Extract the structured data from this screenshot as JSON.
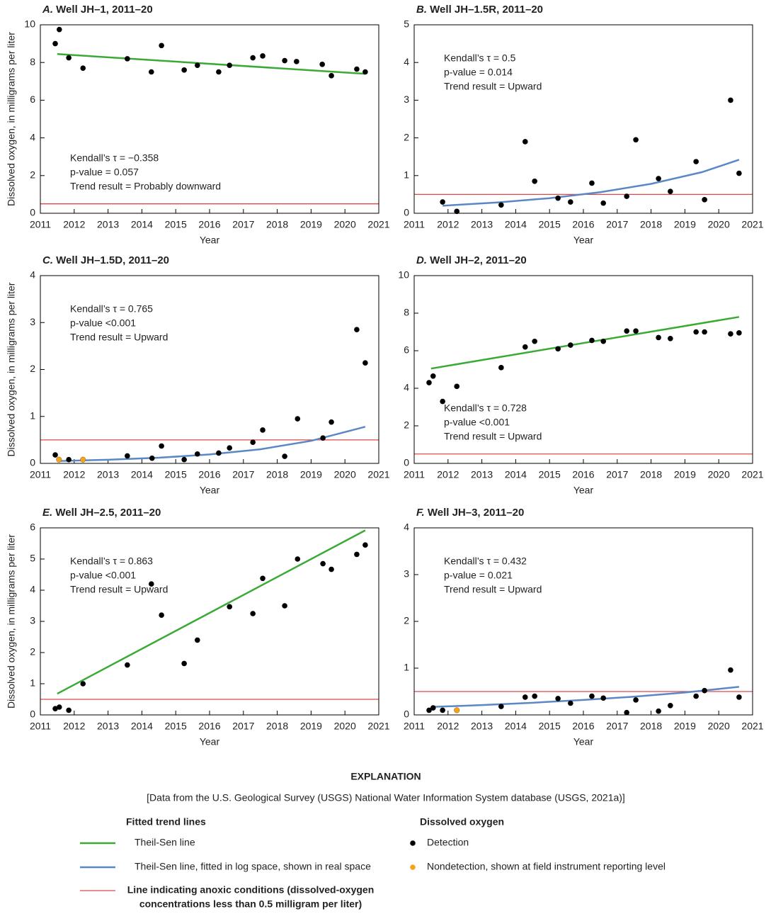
{
  "chart_data": [
    {
      "type": "scatter",
      "panel_label": "A.",
      "title": "Well JH–1, 2011–20",
      "x_label": "Year",
      "y_label": "Dissolved oxygen, in milligrams per liter",
      "xlim": [
        2011,
        2021
      ],
      "xticks": [
        2011,
        2012,
        2013,
        2014,
        2015,
        2016,
        2017,
        2018,
        2019,
        2020,
        2021
      ],
      "ylim": [
        0,
        10
      ],
      "yticks": [
        0,
        2,
        4,
        6,
        8,
        10
      ],
      "grid": false,
      "annotations": [
        "Kendall’s τ = −0.358",
        "p-value = 0.057",
        "Trend result = Probably downward"
      ],
      "annotation_corner": "lower-left",
      "reference_line": 0.5,
      "reference_color": "#e0474c",
      "series": [
        {
          "kind": "points",
          "color": "#000000",
          "x": [
            2011.44,
            2011.56,
            2011.84,
            2012.26,
            2013.57,
            2014.28,
            2014.58,
            2015.25,
            2015.64,
            2016.27,
            2016.59,
            2017.28,
            2017.57,
            2018.22,
            2018.57,
            2019.33,
            2019.6,
            2020.35,
            2020.6
          ],
          "values": [
            9.0,
            9.75,
            8.25,
            7.7,
            8.2,
            7.5,
            8.9,
            7.6,
            7.85,
            7.5,
            7.85,
            8.25,
            8.35,
            8.1,
            8.05,
            7.9,
            7.3,
            7.65,
            7.5
          ]
        },
        {
          "kind": "line",
          "color": "#3aaa35",
          "x": [
            2011.5,
            2020.6
          ],
          "values": [
            8.45,
            7.4
          ]
        }
      ]
    },
    {
      "type": "scatter",
      "panel_label": "B.",
      "title": "Well JH–1.5R, 2011–20",
      "x_label": "Year",
      "xlim": [
        2011,
        2021
      ],
      "xticks": [
        2011,
        2012,
        2013,
        2014,
        2015,
        2016,
        2017,
        2018,
        2019,
        2020,
        2021
      ],
      "ylim": [
        0,
        5
      ],
      "yticks": [
        0,
        1,
        2,
        3,
        4,
        5
      ],
      "grid": false,
      "annotations": [
        "Kendall’s τ = 0.5",
        "p-value = 0.014",
        "Trend result = Upward"
      ],
      "annotation_corner": "upper-left",
      "reference_line": 0.5,
      "reference_color": "#e0474c",
      "series": [
        {
          "kind": "points",
          "color": "#000000",
          "x": [
            2011.84,
            2012.26,
            2013.57,
            2014.28,
            2014.56,
            2015.25,
            2015.62,
            2016.25,
            2016.59,
            2017.28,
            2017.55,
            2018.22,
            2018.57,
            2019.33,
            2019.58,
            2020.35,
            2020.6
          ],
          "values": [
            0.3,
            0.05,
            0.22,
            1.9,
            0.85,
            0.4,
            0.3,
            0.8,
            0.27,
            0.45,
            1.95,
            0.92,
            0.58,
            1.37,
            0.36,
            3.0,
            1.06
          ]
        },
        {
          "kind": "line",
          "color": "#5b87c5",
          "x": [
            2011.84,
            2013.5,
            2015,
            2016.5,
            2018,
            2019.5,
            2020.6
          ],
          "values": [
            0.2,
            0.29,
            0.4,
            0.56,
            0.78,
            1.09,
            1.42
          ]
        }
      ]
    },
    {
      "type": "scatter",
      "panel_label": "C.",
      "title": "Well JH–1.5D, 2011–20",
      "x_label": "Year",
      "y_label": "Dissolved oxygen, in milligrams per liter",
      "xlim": [
        2011,
        2021
      ],
      "xticks": [
        2011,
        2012,
        2013,
        2014,
        2015,
        2016,
        2017,
        2018,
        2019,
        2020,
        2021
      ],
      "ylim": [
        0,
        4
      ],
      "yticks": [
        0,
        1,
        2,
        3,
        4
      ],
      "grid": false,
      "annotations": [
        "Kendall’s τ = 0.765",
        "p-value <0.001",
        "Trend result = Upward"
      ],
      "annotation_corner": "upper-left",
      "reference_line": 0.5,
      "reference_color": "#e0474c",
      "series": [
        {
          "kind": "points",
          "color": "#000000",
          "x": [
            2011.44,
            2011.84,
            2013.57,
            2014.3,
            2014.58,
            2015.25,
            2015.64,
            2016.27,
            2016.59,
            2017.28,
            2017.57,
            2018.22,
            2018.6,
            2019.35,
            2019.6,
            2020.35,
            2020.6
          ],
          "values": [
            0.18,
            0.08,
            0.16,
            0.11,
            0.37,
            0.08,
            0.2,
            0.22,
            0.33,
            0.45,
            0.71,
            0.15,
            0.95,
            0.54,
            0.88,
            2.85,
            2.14
          ]
        },
        {
          "kind": "points",
          "color": "#f5a31a",
          "x": [
            2011.55,
            2012.26
          ],
          "values": [
            0.08,
            0.08
          ]
        },
        {
          "kind": "line",
          "color": "#5b87c5",
          "x": [
            2011.55,
            2013,
            2014.5,
            2016,
            2017.5,
            2019,
            2020.6
          ],
          "values": [
            0.05,
            0.078,
            0.12,
            0.19,
            0.3,
            0.48,
            0.78
          ]
        }
      ]
    },
    {
      "type": "scatter",
      "panel_label": "D.",
      "title": "Well JH–2, 2011–20",
      "x_label": "Year",
      "xlim": [
        2011,
        2021
      ],
      "xticks": [
        2011,
        2012,
        2013,
        2014,
        2015,
        2016,
        2017,
        2018,
        2019,
        2020,
        2021
      ],
      "ylim": [
        0,
        10
      ],
      "yticks": [
        0,
        2,
        4,
        6,
        8,
        10
      ],
      "grid": false,
      "annotations": [
        "Kendall’s τ = 0.728",
        "p-value <0.001",
        "Trend result = Upward"
      ],
      "annotation_corner": "lower-left",
      "reference_line": 0.5,
      "reference_color": "#e0474c",
      "series": [
        {
          "kind": "points",
          "color": "#000000",
          "x": [
            2011.44,
            2011.56,
            2011.84,
            2012.26,
            2013.57,
            2014.28,
            2014.56,
            2015.25,
            2015.62,
            2016.25,
            2016.59,
            2017.28,
            2017.55,
            2018.22,
            2018.57,
            2019.33,
            2019.58,
            2020.35,
            2020.6
          ],
          "values": [
            4.3,
            4.65,
            3.3,
            4.1,
            5.1,
            6.2,
            6.5,
            6.1,
            6.3,
            6.55,
            6.5,
            7.05,
            7.05,
            6.7,
            6.65,
            7.0,
            7.0,
            6.9,
            6.95
          ]
        },
        {
          "kind": "line",
          "color": "#3aaa35",
          "x": [
            2011.5,
            2020.6
          ],
          "values": [
            5.05,
            7.8
          ]
        }
      ]
    },
    {
      "type": "scatter",
      "panel_label": "E.",
      "title": "Well JH–2.5, 2011–20",
      "x_label": "Year",
      "y_label": "Dissolved oxygen, in milligrams per liter",
      "xlim": [
        2011,
        2021
      ],
      "xticks": [
        2011,
        2012,
        2013,
        2014,
        2015,
        2016,
        2017,
        2018,
        2019,
        2020,
        2021
      ],
      "ylim": [
        0,
        6
      ],
      "yticks": [
        0,
        1,
        2,
        3,
        4,
        5,
        6
      ],
      "grid": false,
      "annotations": [
        "Kendall’s τ = 0.863",
        "p-value <0.001",
        "Trend result = Upward"
      ],
      "annotation_corner": "upper-left",
      "reference_line": 0.5,
      "reference_color": "#e0474c",
      "series": [
        {
          "kind": "points",
          "color": "#000000",
          "x": [
            2011.44,
            2011.56,
            2011.84,
            2012.26,
            2013.57,
            2014.28,
            2014.58,
            2015.25,
            2015.64,
            2016.59,
            2017.28,
            2017.57,
            2018.22,
            2018.6,
            2019.35,
            2019.6,
            2020.35,
            2020.6
          ],
          "values": [
            0.2,
            0.25,
            0.15,
            1.0,
            1.6,
            4.2,
            3.2,
            1.65,
            2.4,
            3.47,
            3.25,
            4.38,
            3.5,
            5.0,
            4.85,
            4.67,
            5.15,
            5.45
          ]
        },
        {
          "kind": "line",
          "color": "#3aaa35",
          "x": [
            2011.5,
            2020.6
          ],
          "values": [
            0.68,
            5.92
          ]
        }
      ]
    },
    {
      "type": "scatter",
      "panel_label": "F.",
      "title": "Well JH–3, 2011–20",
      "x_label": "Year",
      "xlim": [
        2011,
        2021
      ],
      "xticks": [
        2011,
        2012,
        2013,
        2014,
        2015,
        2016,
        2017,
        2018,
        2019,
        2020,
        2021
      ],
      "ylim": [
        0,
        4
      ],
      "yticks": [
        0,
        1,
        2,
        3,
        4
      ],
      "grid": false,
      "annotations": [
        "Kendall’s τ = 0.432",
        "p-value = 0.021",
        "Trend result = Upward"
      ],
      "annotation_corner": "upper-left",
      "reference_line": 0.5,
      "reference_color": "#e0474c",
      "series": [
        {
          "kind": "points",
          "color": "#000000",
          "x": [
            2011.44,
            2011.56,
            2011.84,
            2013.57,
            2014.28,
            2014.56,
            2015.25,
            2015.62,
            2016.25,
            2016.59,
            2017.28,
            2017.55,
            2018.22,
            2018.57,
            2019.33,
            2019.58,
            2020.35,
            2020.6
          ],
          "values": [
            0.1,
            0.15,
            0.1,
            0.18,
            0.38,
            0.4,
            0.35,
            0.25,
            0.4,
            0.36,
            0.05,
            0.32,
            0.08,
            0.2,
            0.4,
            0.52,
            0.96,
            0.38
          ]
        },
        {
          "kind": "points",
          "color": "#f5a31a",
          "x": [
            2012.26
          ],
          "values": [
            0.1
          ]
        },
        {
          "kind": "line",
          "color": "#5b87c5",
          "x": [
            2011.5,
            2013,
            2014.5,
            2016,
            2017.5,
            2019,
            2020.6
          ],
          "values": [
            0.17,
            0.21,
            0.26,
            0.32,
            0.39,
            0.48,
            0.6
          ]
        }
      ]
    }
  ],
  "explanation": {
    "title": "EXPLANATION",
    "source": "[Data from the U.S. Geological Survey (USGS) National Water Information System database (USGS, 2021a)]",
    "trend_heading": "Fitted trend lines",
    "trend_items": [
      {
        "label": "Theil-Sen line",
        "color": "#3aaa35"
      },
      {
        "label": "Theil-Sen line, fitted in log space, shown in real space",
        "color": "#5b87c5"
      }
    ],
    "anoxic_item": {
      "lines": [
        "Line indicating anoxic conditions (dissolved-oxygen",
        "concentrations less than 0.5 milligram per liter)"
      ],
      "color": "#e0474c"
    },
    "do_heading": "Dissolved oxygen",
    "do_items": [
      {
        "label": "Detection",
        "color": "#000000"
      },
      {
        "label": "Nondetection, shown at field instrument reporting level",
        "color": "#f5a31a"
      }
    ]
  }
}
